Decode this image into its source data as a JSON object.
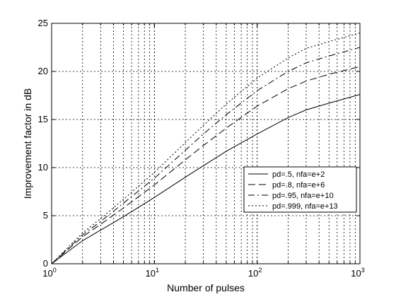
{
  "chart_data": {
    "type": "line",
    "xscale": "log",
    "xlim": [
      1,
      1000
    ],
    "ylim": [
      0,
      25
    ],
    "xlabel": "Number of pulses",
    "ylabel": "Improvement factor in dB",
    "grid": true,
    "legend_position": "lower-right",
    "x_ticks": [
      1,
      10,
      100,
      1000
    ],
    "x_tick_labels": [
      {
        "base": "10",
        "exp": "0"
      },
      {
        "base": "10",
        "exp": "1"
      },
      {
        "base": "10",
        "exp": "2"
      },
      {
        "base": "10",
        "exp": "3"
      }
    ],
    "y_ticks": [
      0,
      5,
      10,
      15,
      20,
      25
    ],
    "y_tick_labels": [
      "0",
      "5",
      "10",
      "15",
      "20",
      "25"
    ],
    "x": [
      1,
      2,
      3,
      5,
      10,
      20,
      30,
      50,
      100,
      200,
      300,
      500,
      1000
    ],
    "series": [
      {
        "name": "pd=.5, nfa=e+2",
        "dash": "solid",
        "values": [
          0,
          2.4,
          3.5,
          4.9,
          6.9,
          9.0,
          10.2,
          11.7,
          13.5,
          15.2,
          16.0,
          16.7,
          17.6
        ]
      },
      {
        "name": "pd=.8, nfa=e+6",
        "dash": "dash",
        "values": [
          0,
          2.8,
          4.1,
          5.8,
          8.2,
          10.8,
          12.3,
          14.1,
          16.4,
          18.2,
          19.0,
          19.7,
          20.5
        ]
      },
      {
        "name": "pd=.95, nfa=e+10",
        "dash": "dashdot",
        "values": [
          0,
          3.0,
          4.4,
          6.3,
          8.9,
          11.8,
          13.5,
          15.5,
          18.0,
          20.0,
          20.9,
          21.6,
          22.5
        ]
      },
      {
        "name": "pd=.999, nfa=e+13",
        "dash": "dot",
        "values": [
          0,
          3.2,
          4.7,
          6.7,
          9.5,
          12.6,
          14.4,
          16.6,
          19.3,
          21.4,
          22.4,
          23.1,
          24.0
        ]
      }
    ]
  }
}
